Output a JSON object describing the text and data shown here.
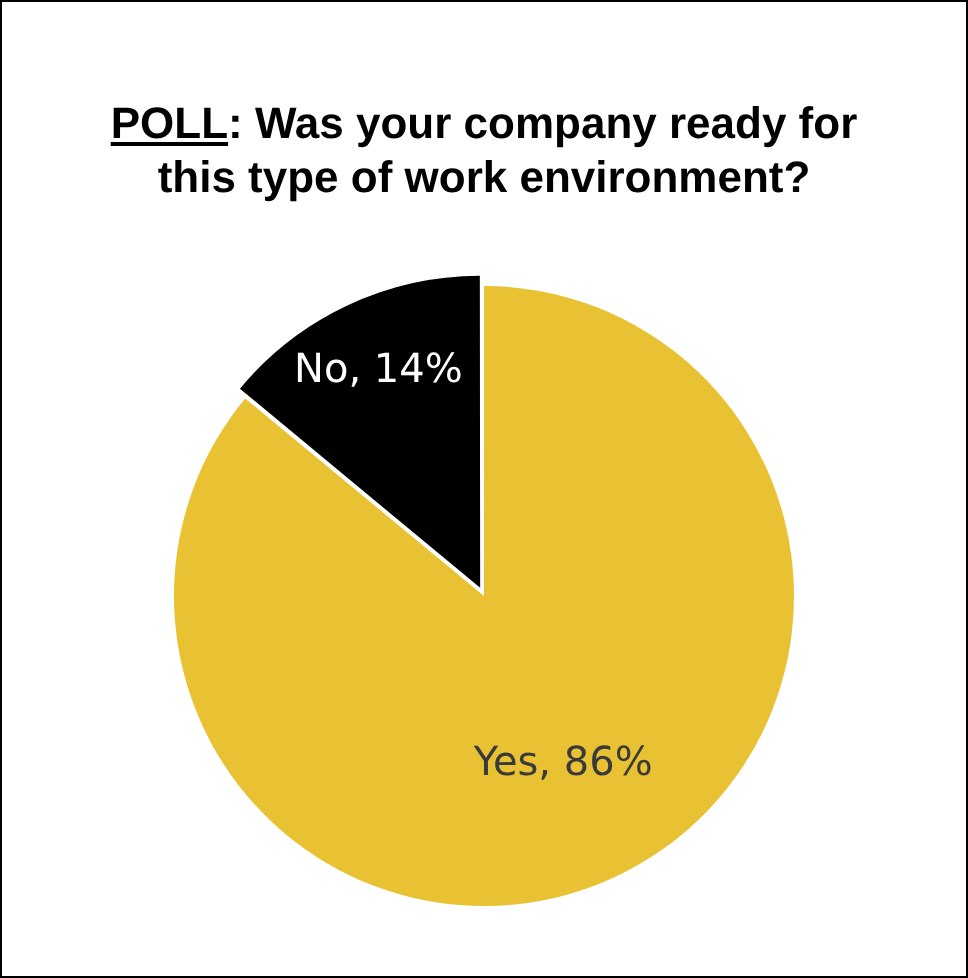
{
  "chart_data": {
    "type": "pie",
    "title": "POLL: Was your company ready for this type of work environment?",
    "categories": [
      "Yes",
      "No"
    ],
    "values": [
      86,
      14
    ],
    "colors": [
      "#e8c232",
      "#000000"
    ],
    "value_labels": [
      "86%",
      "14%"
    ],
    "legend": false
  }
}
